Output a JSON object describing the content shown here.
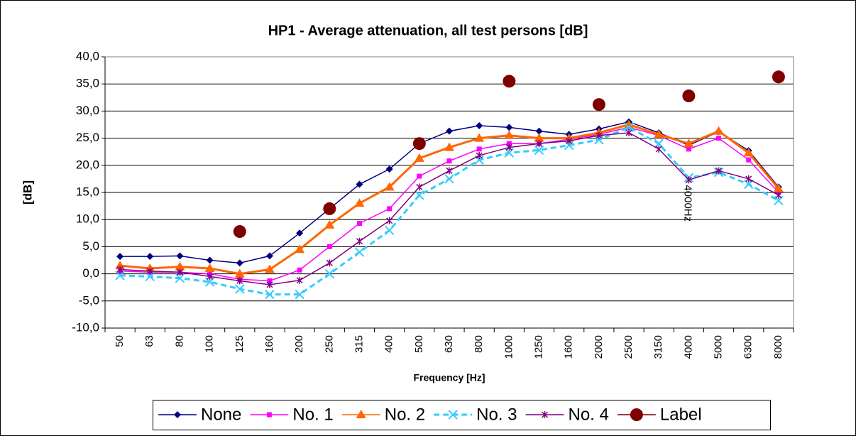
{
  "chart_data": {
    "type": "line",
    "title": "HP1 - Average attenuation, all test persons [dB]",
    "x_label": "Frequency [Hz]",
    "y_label": "[dB]",
    "annotation": "4000Hz",
    "categories": [
      "50",
      "63",
      "80",
      "100",
      "125",
      "160",
      "200",
      "250",
      "315",
      "400",
      "500",
      "630",
      "800",
      "1000",
      "1250",
      "1600",
      "2000",
      "2500",
      "3150",
      "4000",
      "5000",
      "6300",
      "8000"
    ],
    "ylim": [
      -10,
      40
    ],
    "yticks": [
      {
        "value": -10,
        "label": "-10,0"
      },
      {
        "value": -5,
        "label": "-5,0"
      },
      {
        "value": 0,
        "label": "0,0"
      },
      {
        "value": 5,
        "label": "5,0"
      },
      {
        "value": 10,
        "label": "10,0"
      },
      {
        "value": 15,
        "label": "15,0"
      },
      {
        "value": 20,
        "label": "20,0"
      },
      {
        "value": 25,
        "label": "25,0"
      },
      {
        "value": 30,
        "label": "30,0"
      },
      {
        "value": 35,
        "label": "35,0"
      },
      {
        "value": 40,
        "label": "40,0"
      }
    ],
    "grid": true,
    "legend": "bottom",
    "series": [
      {
        "name": "None",
        "color": "#000080",
        "marker": "diamond",
        "line": true,
        "values": [
          3.2,
          3.2,
          3.3,
          2.5,
          2.0,
          3.3,
          7.5,
          12.0,
          16.5,
          19.3,
          24.0,
          26.3,
          27.3,
          27.0,
          26.3,
          25.7,
          26.7,
          28.0,
          26.0,
          23.7,
          26.2,
          22.7,
          16.0
        ]
      },
      {
        "name": "No. 1",
        "color": "#ff00ff",
        "marker": "square",
        "line": true,
        "values": [
          0.5,
          0.3,
          0.3,
          0.0,
          -1.0,
          -1.3,
          0.7,
          5.0,
          9.3,
          12.0,
          18.0,
          20.8,
          23.0,
          24.0,
          24.0,
          24.8,
          25.7,
          27.0,
          25.5,
          23.0,
          25.0,
          21.0,
          15.0
        ]
      },
      {
        "name": "No. 2",
        "color": "#ff6600",
        "marker": "triangle",
        "line": true,
        "values": [
          1.5,
          1.0,
          1.3,
          1.0,
          0.0,
          0.8,
          4.5,
          9.0,
          13.0,
          16.0,
          21.3,
          23.3,
          25.0,
          25.5,
          25.0,
          25.0,
          26.0,
          27.5,
          25.7,
          24.0,
          26.3,
          22.3,
          15.7
        ]
      },
      {
        "name": "No. 3",
        "color": "#33ccff",
        "marker": "x",
        "line": true,
        "dashed": true,
        "values": [
          -0.3,
          -0.5,
          -0.8,
          -1.5,
          -2.8,
          -3.8,
          -3.8,
          0.0,
          4.0,
          8.0,
          14.5,
          17.5,
          21.0,
          22.3,
          22.8,
          23.7,
          24.7,
          27.0,
          24.0,
          17.7,
          18.7,
          16.5,
          13.5
        ]
      },
      {
        "name": "No. 4",
        "color": "#800080",
        "marker": "star",
        "line": true,
        "values": [
          0.8,
          0.5,
          0.3,
          -0.5,
          -1.3,
          -2.0,
          -1.2,
          2.0,
          6.0,
          9.8,
          16.0,
          19.0,
          21.8,
          23.3,
          24.0,
          24.5,
          25.5,
          26.0,
          23.0,
          17.3,
          19.0,
          17.5,
          14.5
        ]
      },
      {
        "name": "Label",
        "color": "#800000",
        "marker": "circle",
        "line": false,
        "values": [
          null,
          null,
          null,
          null,
          7.8,
          null,
          null,
          12.0,
          null,
          null,
          24.0,
          null,
          null,
          35.5,
          null,
          null,
          31.2,
          null,
          null,
          32.8,
          null,
          null,
          36.3
        ]
      }
    ]
  }
}
